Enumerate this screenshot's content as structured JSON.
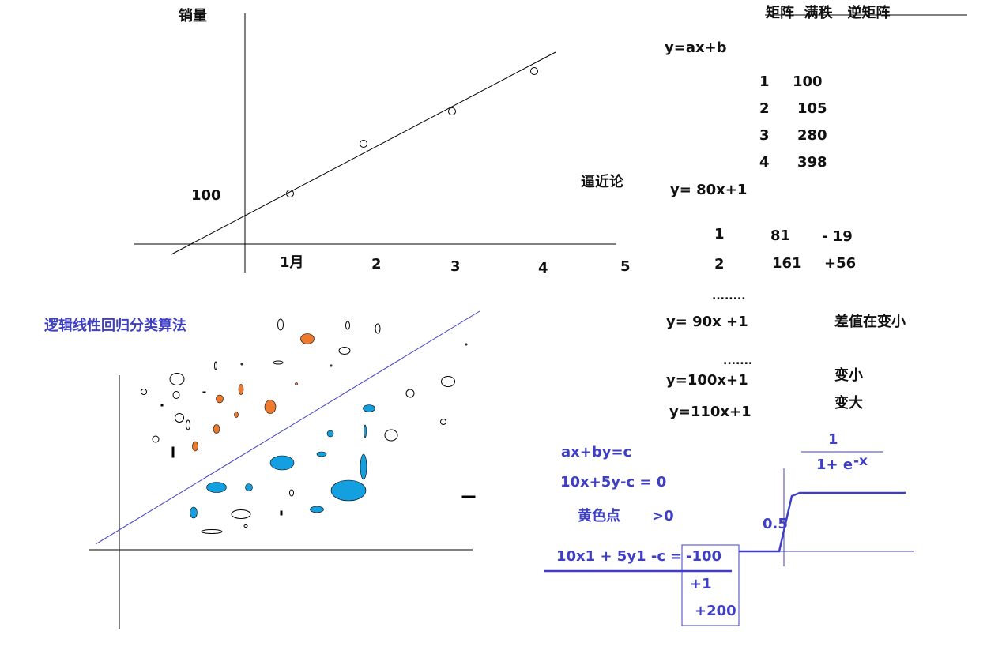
{
  "top_chart": {
    "ylabel": "销量",
    "y_tick": "100",
    "x_ticks": [
      "1月",
      "2",
      "3",
      "4",
      "5"
    ],
    "annotation": "逼近论",
    "points": [
      [
        1,
        100
      ],
      [
        2,
        105
      ],
      [
        3,
        280
      ],
      [
        4,
        398
      ]
    ]
  },
  "matrix_notes": {
    "header": "矩阵  满秩   逆矩阵",
    "model": "y=ax+b",
    "table": [
      [
        "1",
        "100"
      ],
      [
        "2",
        "105"
      ],
      [
        "3",
        "280"
      ],
      [
        "4",
        "398"
      ]
    ],
    "fit1": "y= 80x+1",
    "residuals": [
      {
        "x": "1",
        "pred": "81",
        "diff": "- 19"
      },
      {
        "x": "2",
        "pred": "161",
        "diff": "+56"
      }
    ],
    "dots1": "........",
    "fit2": "y= 90x +1",
    "note_shrinking": "差值在变小",
    "dots2": ".......",
    "fit3": "y=100x+1",
    "note_smaller": "变小",
    "fit4": "y=110x+1",
    "note_larger": "变大"
  },
  "scatter_panel": {
    "title": "逻辑线性回归分类算法",
    "colors": {
      "orange": "#ee7a2e",
      "blue": "#14a0e0",
      "line": "#3f3fc4"
    }
  },
  "formulas": {
    "line_eq": "ax+by=c",
    "example_eq": "10x+5y-c = 0",
    "yellow_point": "黄色点",
    "gt_zero": ">0",
    "eval_expr": "10x1 + 5y1 -c",
    "equals": "=",
    "values": [
      "-100",
      "+1",
      "+200"
    ]
  },
  "sigmoid": {
    "numerator": "1",
    "denominator": "1+ e",
    "exponent": "-x",
    "half": "0.5"
  }
}
